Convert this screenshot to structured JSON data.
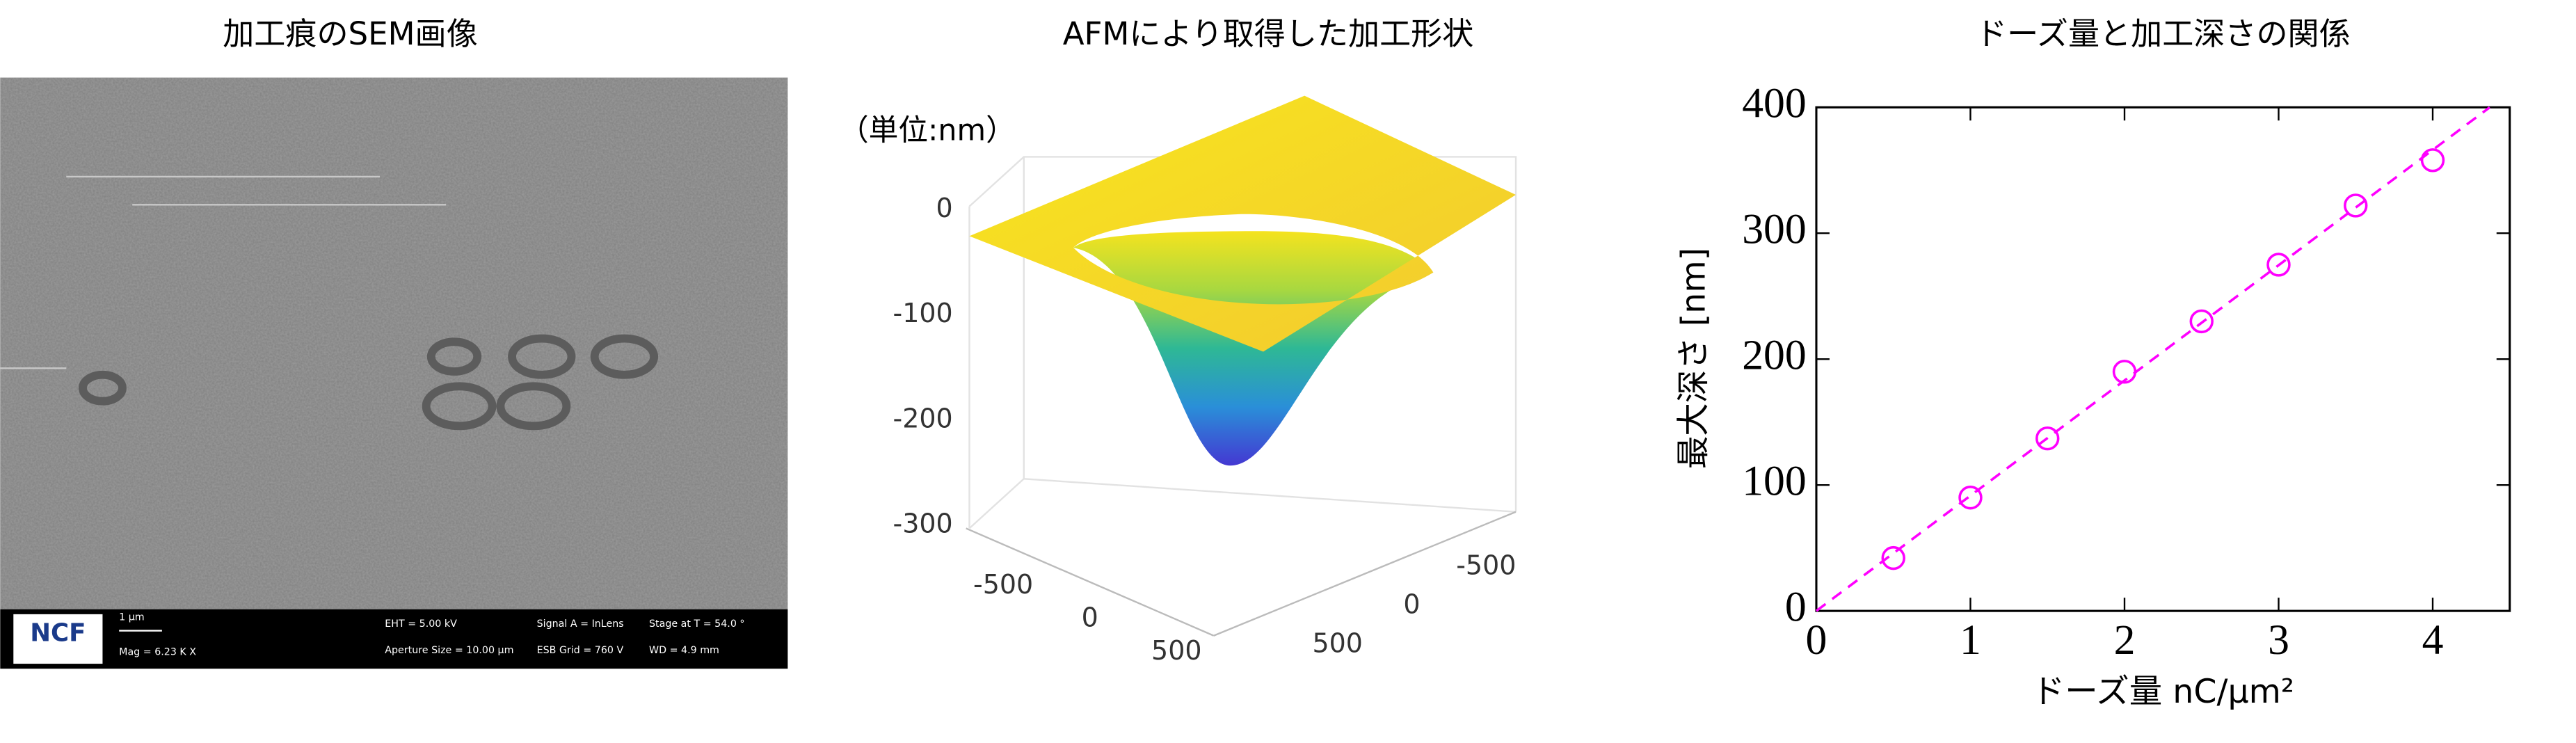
{
  "sem_image": {
    "title": "加工痕のSEM画像",
    "logo": "NCF",
    "scale_bar": "1 μm",
    "mag": "Mag =  6.23 K X",
    "eht": "EHT =  5.00 kV",
    "signal": "Signal A = InLens",
    "stage": "Stage at T =  54.0 °",
    "aperture": "Aperture Size = 10.00 μm",
    "esb": "ESB Grid =    760 V",
    "wd": "WD =   4.9 mm"
  },
  "chart_data": [
    {
      "type": "surface",
      "title": "AFMにより取得した加工形状",
      "unit_label": "（単位:nm）",
      "zticks": [
        0,
        -100,
        -200,
        -300
      ],
      "xticks": [
        -500,
        0,
        500
      ],
      "yticks": [
        -500,
        0,
        500
      ]
    },
    {
      "type": "scatter",
      "title": "ドーズ量と加工深さの関係",
      "x_label": "ドーズ量 nC/μm²",
      "y_label": "最大深さ [nm]",
      "series": [
        {
          "color": "#ff00ff",
          "x": [
            0.5,
            1,
            1.5,
            2,
            2.5,
            3,
            3.5,
            4
          ],
          "values": [
            42,
            90,
            137,
            190,
            230,
            275,
            322,
            358
          ]
        }
      ],
      "fit": {
        "color": "#ff00ff",
        "x": [
          0,
          4.37
        ],
        "values": [
          0,
          400
        ]
      },
      "xlim": [
        0,
        4.5
      ],
      "ylim": [
        0,
        400
      ],
      "xticks": [
        0,
        1,
        2,
        3,
        4
      ],
      "yticks": [
        0,
        100,
        200,
        300,
        400
      ]
    }
  ]
}
